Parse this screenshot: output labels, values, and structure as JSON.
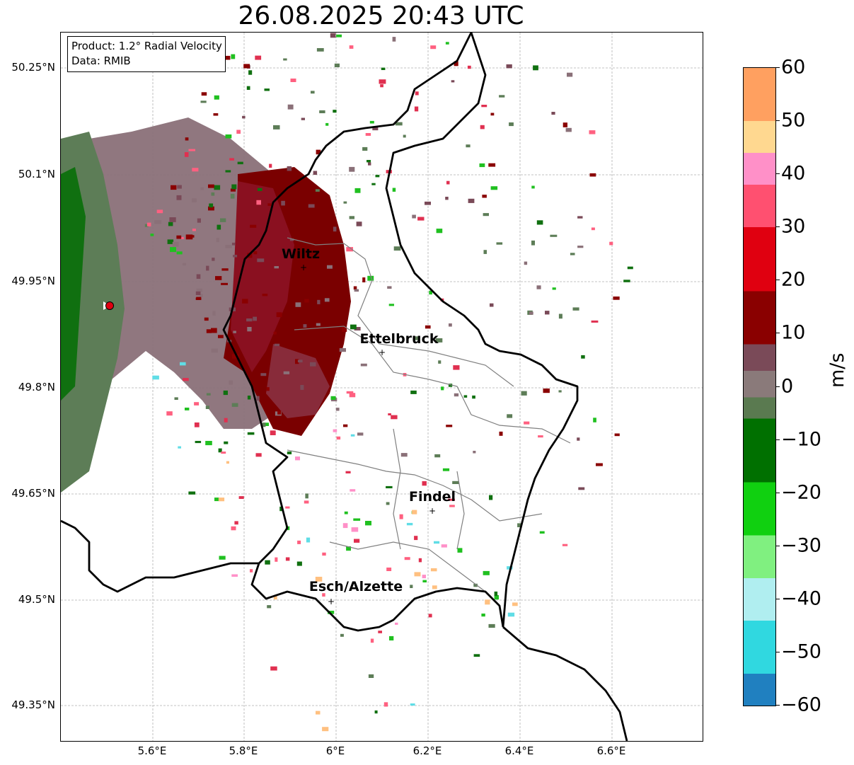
{
  "title": "26.08.2025 20:43 UTC",
  "info_box": {
    "product": "Product: 1.2° Radial Velocity",
    "source": "Data: RMIB"
  },
  "axes": {
    "x_ticks": [
      "5.6°E",
      "5.8°E",
      "6°E",
      "6.2°E",
      "6.4°E",
      "6.6°E"
    ],
    "y_ticks": [
      "50.25°N",
      "50.1°N",
      "49.95°N",
      "49.8°N",
      "49.65°N",
      "49.5°N",
      "49.35°N"
    ]
  },
  "cities": [
    {
      "name": "Wiltz",
      "lon": 5.93,
      "lat": 49.97
    },
    {
      "name": "Ettelbruck",
      "lon": 6.1,
      "lat": 49.85
    },
    {
      "name": "Findel",
      "lon": 6.21,
      "lat": 49.63
    },
    {
      "name": "Esch/Alzette",
      "lon": 5.99,
      "lat": 49.5
    }
  ],
  "radar_site": {
    "lon": 5.505,
    "lat": 49.914
  },
  "colorbar": {
    "unit": "m/s",
    "ticks": [
      "60",
      "50",
      "40",
      "30",
      "20",
      "10",
      "0",
      "−10",
      "−20",
      "−30",
      "−40",
      "−50",
      "−60"
    ],
    "range": [
      -60,
      60
    ],
    "stops": [
      {
        "from": 50,
        "to": 60,
        "color": "#ffa060"
      },
      {
        "from": 44,
        "to": 50,
        "color": "#ffd890"
      },
      {
        "from": 38,
        "to": 44,
        "color": "#ff90c8"
      },
      {
        "from": 30,
        "to": 38,
        "color": "#ff5070"
      },
      {
        "from": 18,
        "to": 30,
        "color": "#e00010"
      },
      {
        "from": 8,
        "to": 18,
        "color": "#8a0000"
      },
      {
        "from": 3,
        "to": 8,
        "color": "#7a4a58"
      },
      {
        "from": -2,
        "to": 3,
        "color": "#8a7a7a"
      },
      {
        "from": -6,
        "to": -2,
        "color": "#5a7a50"
      },
      {
        "from": -18,
        "to": -6,
        "color": "#007000"
      },
      {
        "from": -28,
        "to": -18,
        "color": "#10d010"
      },
      {
        "from": -36,
        "to": -28,
        "color": "#80f080"
      },
      {
        "from": -44,
        "to": -36,
        "color": "#b0eef0"
      },
      {
        "from": -54,
        "to": -44,
        "color": "#30d8e0"
      },
      {
        "from": -60,
        "to": -54,
        "color": "#2080c0"
      }
    ]
  },
  "colors": {
    "outbound_far": "#7a0000",
    "outbound_mid": "#8a3040",
    "neutral": "#8a7078",
    "inbound_gray": "#5d7d57",
    "inbound_green": "#107010",
    "border": "#000000",
    "admin_border": "#808080"
  }
}
